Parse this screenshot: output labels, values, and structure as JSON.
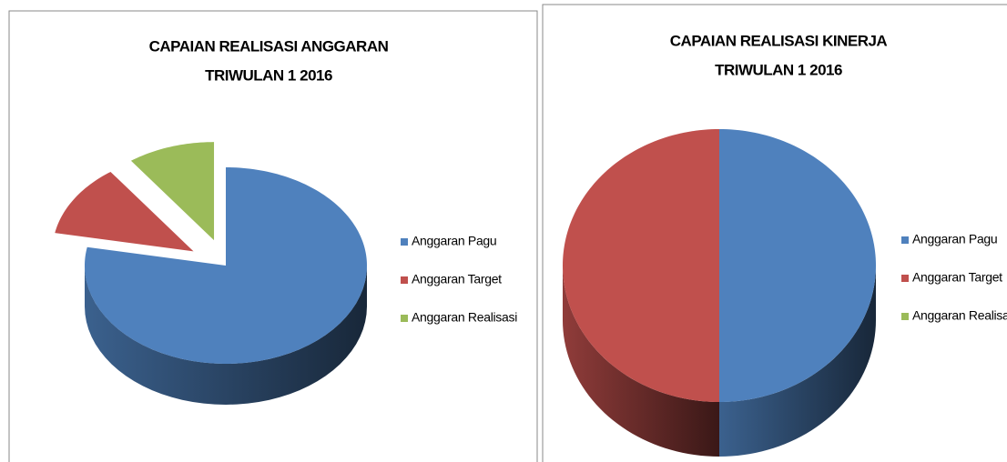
{
  "chart_data": [
    {
      "type": "pie3d",
      "title": [
        "CAPAIAN REALISASI ANGGARAN",
        "TRIWULAN 1 2016"
      ],
      "categories": [
        "Anggaran Pagu",
        "Anggaran Target",
        "Anggaran Realisasi"
      ],
      "values": [
        78,
        12,
        10
      ],
      "colors": [
        "#4f81bd",
        "#c0504d",
        "#9bbb59"
      ],
      "exploded": [
        false,
        true,
        true
      ]
    },
    {
      "type": "pie3d",
      "title": [
        "CAPAIAN REALISASI KINERJA",
        "TRIWULAN 1 2016"
      ],
      "categories": [
        "Anggaran Pagu",
        "Anggaran Target",
        "Anggaran Realisas"
      ],
      "values": [
        50,
        50,
        0
      ],
      "colors": [
        "#4f81bd",
        "#c0504d",
        "#9bbb59"
      ],
      "exploded": [
        false,
        false,
        false
      ]
    }
  ]
}
